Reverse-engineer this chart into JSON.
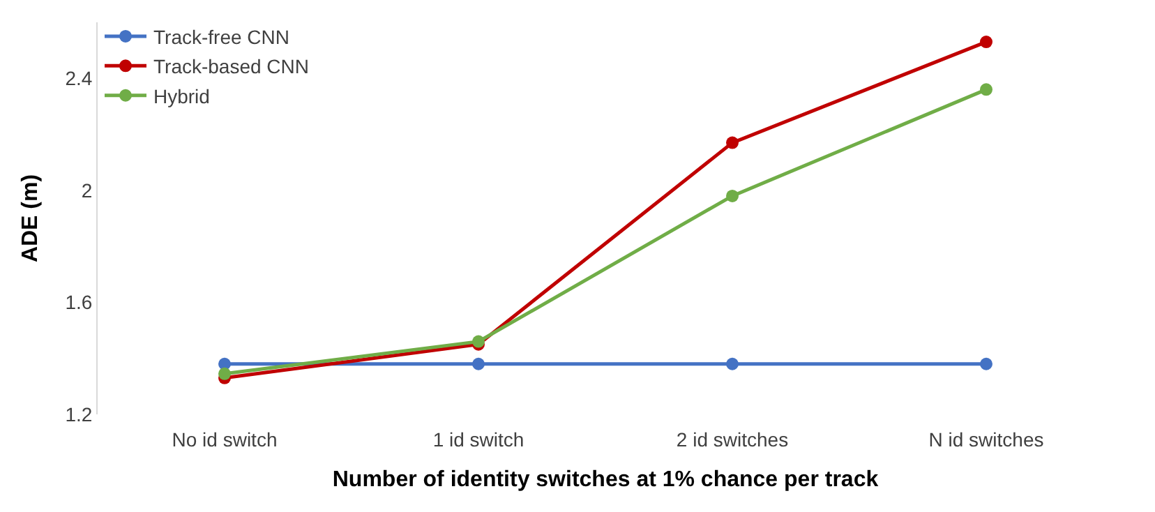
{
  "chart_data": {
    "type": "line",
    "xlabel": "Number of identity switches at 1% chance per track",
    "ylabel": "ADE (m)",
    "categories": [
      "No id switch",
      "1 id switch",
      "2 id switches",
      "N id switches"
    ],
    "series": [
      {
        "name": "Track-free CNN",
        "color": "#4472c4",
        "values": [
          1.38,
          1.38,
          1.38,
          1.38
        ]
      },
      {
        "name": "Track-based CNN",
        "color": "#c00000",
        "values": [
          1.33,
          1.45,
          2.17,
          2.53
        ]
      },
      {
        "name": "Hybrid",
        "color": "#70ad47",
        "values": [
          1.345,
          1.46,
          1.98,
          2.36
        ]
      }
    ],
    "ylim": [
      1.2,
      2.6
    ],
    "yticks": [
      1.2,
      1.6,
      2,
      2.4
    ],
    "legend": "top left",
    "marker": "circle",
    "line_style": "solid"
  }
}
